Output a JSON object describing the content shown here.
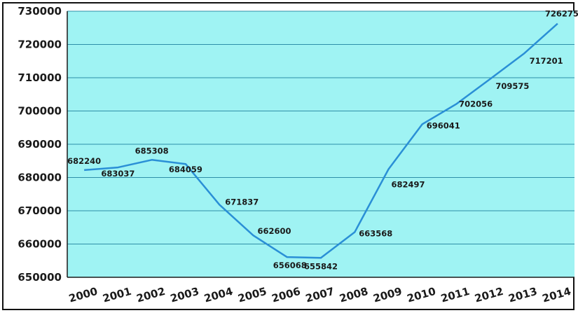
{
  "chart_data": {
    "type": "line",
    "title": "",
    "xlabel": "",
    "ylabel": "",
    "categories": [
      "2000",
      "2001",
      "2002",
      "2003",
      "2004",
      "2005",
      "2006",
      "2007",
      "2008",
      "2009",
      "2010",
      "2011",
      "2012",
      "2013",
      "2014"
    ],
    "series": [
      {
        "values": [
          682240,
          683037,
          685308,
          684059,
          671837,
          662600,
          656068,
          655842,
          663568,
          682497,
          696041,
          702056,
          709575,
          717201,
          726275
        ],
        "data_labels": [
          "682240",
          "683037",
          "685308",
          "684059",
          "671837",
          "662600",
          "656068",
          "655842",
          "663568",
          "682497",
          "696041",
          "702056",
          "709575",
          "717201",
          "726275"
        ]
      }
    ],
    "yticks": [
      "650000",
      "660000",
      "670000",
      "680000",
      "690000",
      "700000",
      "710000",
      "720000",
      "730000"
    ],
    "ylim": [
      650000,
      730000
    ],
    "grid": "horizontal",
    "legend": "none",
    "colors": {
      "plot_background": "#9ff3f3",
      "line": "#2a8fd6",
      "grid": "#2e8fa8",
      "axis": "#1a1a1a"
    }
  }
}
